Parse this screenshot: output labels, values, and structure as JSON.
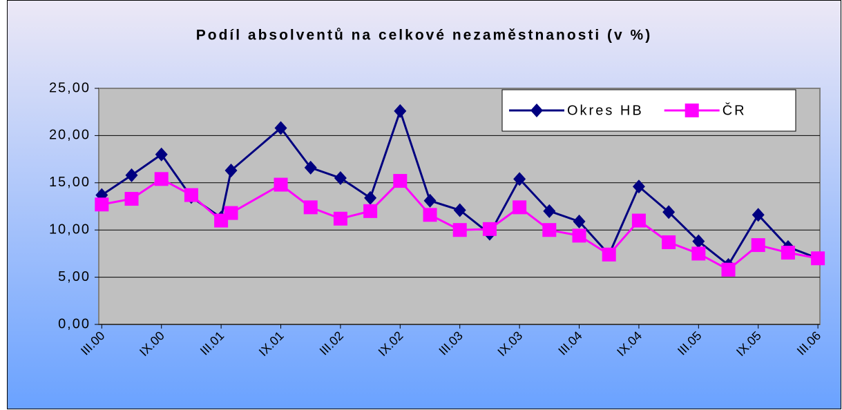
{
  "chart_data": {
    "type": "line",
    "title": "Podíl absolventů na celkové nezaměstnanosti (v %)",
    "x": [
      0,
      3,
      6,
      9,
      12,
      13,
      18,
      21,
      24,
      27,
      30,
      33,
      36,
      39,
      42,
      45,
      48,
      51,
      54,
      57,
      60,
      63,
      66,
      69,
      72
    ],
    "xlim": [
      -0.3,
      72.2
    ],
    "xticks": [
      {
        "value": 0,
        "label": "III.00"
      },
      {
        "value": 6,
        "label": "IX.00"
      },
      {
        "value": 12,
        "label": "III.01"
      },
      {
        "value": 18,
        "label": "IX.01"
      },
      {
        "value": 24,
        "label": "III.02"
      },
      {
        "value": 30,
        "label": "IX.02"
      },
      {
        "value": 36,
        "label": "III.03"
      },
      {
        "value": 42,
        "label": "IX.03"
      },
      {
        "value": 48,
        "label": "III.04"
      },
      {
        "value": 54,
        "label": "IX.04"
      },
      {
        "value": 60,
        "label": "III.05"
      },
      {
        "value": 66,
        "label": "IX.05"
      },
      {
        "value": 72,
        "label": "III.06"
      }
    ],
    "ylim": [
      0,
      25
    ],
    "yticks": [
      {
        "value": 0,
        "label": "0,00"
      },
      {
        "value": 5,
        "label": "5,00"
      },
      {
        "value": 10,
        "label": "10,00"
      },
      {
        "value": 15,
        "label": "15,00"
      },
      {
        "value": 20,
        "label": "20,00"
      },
      {
        "value": 25,
        "label": "25,00"
      }
    ],
    "grid": true,
    "legend": "upper right",
    "series": [
      {
        "name": "Okres HB",
        "color": "#000080",
        "marker": "diamond",
        "values": [
          13.7,
          15.8,
          18.0,
          13.5,
          11.3,
          16.3,
          20.8,
          16.6,
          15.5,
          13.4,
          22.6,
          13.1,
          12.1,
          9.6,
          15.4,
          12.0,
          10.9,
          7.4,
          14.6,
          11.9,
          8.8,
          6.3,
          11.6,
          8.2,
          7.0
        ]
      },
      {
        "name": "ČR",
        "color": "#ff00ff",
        "marker": "square",
        "values": [
          12.7,
          13.3,
          15.4,
          13.7,
          11.0,
          11.8,
          14.8,
          12.4,
          11.2,
          12.0,
          15.2,
          11.6,
          10.0,
          10.1,
          12.4,
          10.0,
          9.4,
          7.4,
          11.0,
          8.7,
          7.5,
          5.8,
          8.4,
          7.6,
          7.0
        ]
      }
    ]
  }
}
